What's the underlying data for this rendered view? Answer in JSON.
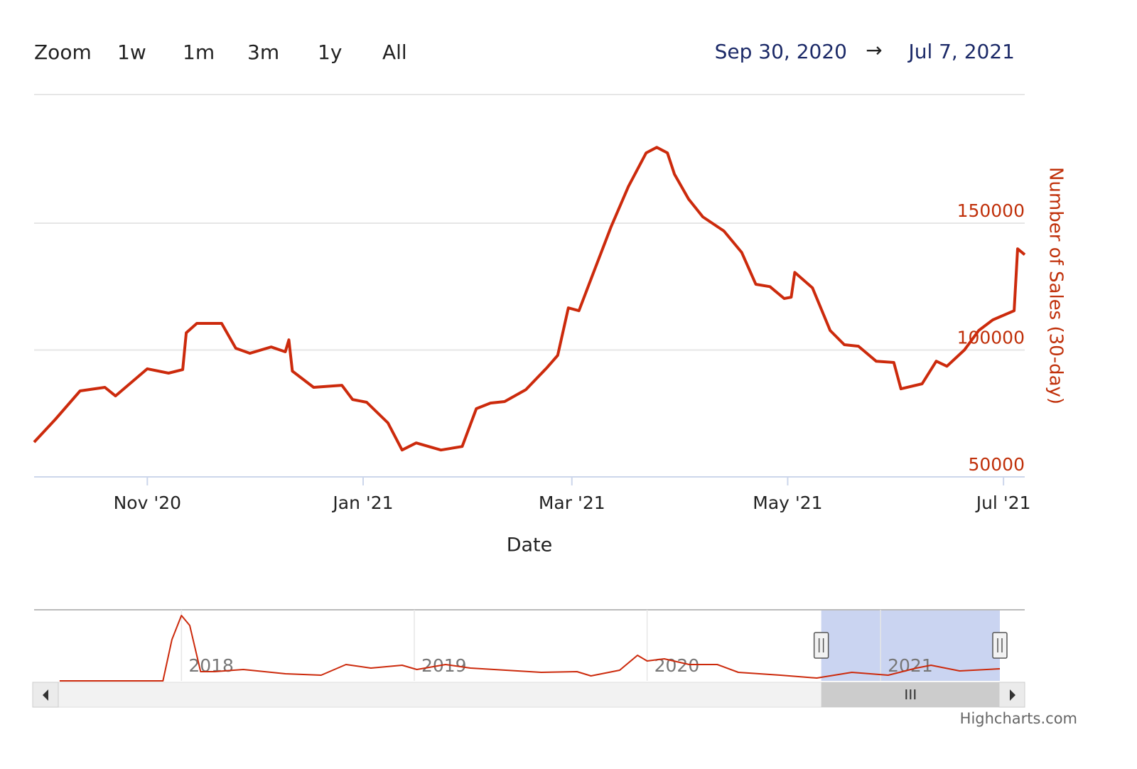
{
  "range_selector": {
    "label": "Zoom",
    "buttons": [
      "1w",
      "1m",
      "3m",
      "1y",
      "All"
    ],
    "from": "Sep 30, 2020",
    "separator": "→",
    "to": "Jul 7, 2021"
  },
  "credits": "Highcharts.com",
  "chart_data": [
    {
      "type": "line",
      "x_label": "Date",
      "y_label": "Number of Sales (30-day)",
      "color": "#cc2a0c",
      "x": [
        "2020-09-30",
        "2020-10-06",
        "2020-10-13",
        "2020-10-20",
        "2020-10-23",
        "2020-11-01",
        "2020-11-07",
        "2020-11-11",
        "2020-11-12",
        "2020-11-15",
        "2020-11-22",
        "2020-11-26",
        "2020-11-30",
        "2020-12-06",
        "2020-12-10",
        "2020-12-11",
        "2020-12-12",
        "2020-12-18",
        "2020-12-26",
        "2020-12-29",
        "2021-01-02",
        "2021-01-08",
        "2021-01-12",
        "2021-01-16",
        "2021-01-23",
        "2021-01-29",
        "2021-02-02",
        "2021-02-06",
        "2021-02-10",
        "2021-02-16",
        "2021-02-22",
        "2021-02-25",
        "2021-02-28",
        "2021-03-03",
        "2021-03-07",
        "2021-03-12",
        "2021-03-17",
        "2021-03-22",
        "2021-03-25",
        "2021-03-28",
        "2021-03-30",
        "2021-04-03",
        "2021-04-07",
        "2021-04-13",
        "2021-04-18",
        "2021-04-22",
        "2021-04-26",
        "2021-04-30",
        "2021-05-02",
        "2021-05-03",
        "2021-05-08",
        "2021-05-13",
        "2021-05-17",
        "2021-05-21",
        "2021-05-26",
        "2021-05-31",
        "2021-06-02",
        "2021-06-08",
        "2021-06-12",
        "2021-06-15",
        "2021-06-20",
        "2021-06-24",
        "2021-06-28",
        "2021-07-04",
        "2021-07-05",
        "2021-07-07"
      ],
      "values": [
        63700,
        72700,
        83900,
        85300,
        81900,
        92600,
        90900,
        92300,
        106800,
        110500,
        110500,
        100700,
        98700,
        101200,
        99300,
        104000,
        91700,
        85300,
        86100,
        80500,
        79400,
        71300,
        60600,
        63400,
        60600,
        62000,
        76900,
        79100,
        79700,
        84400,
        93100,
        97900,
        116600,
        115500,
        130100,
        148300,
        164500,
        177700,
        179900,
        177700,
        169300,
        159500,
        152500,
        146900,
        138500,
        125900,
        125000,
        120300,
        120800,
        130600,
        124500,
        107700,
        102100,
        101500,
        95600,
        95100,
        84700,
        86700,
        95600,
        93600,
        100100,
        107700,
        111900,
        115500,
        139900,
        137600
      ],
      "xlim": [
        "2020-09-30",
        "2021-07-07"
      ],
      "xticks": [
        {
          "value": "2020-11-01",
          "label": "Nov '20"
        },
        {
          "value": "2021-01-01",
          "label": "Jan '21"
        },
        {
          "value": "2021-03-01",
          "label": "Mar '21"
        },
        {
          "value": "2021-05-01",
          "label": "May '21"
        },
        {
          "value": "2021-07-01",
          "label": "Jul '21"
        }
      ],
      "ylim": [
        50000,
        200000
      ],
      "yticks": [
        50000,
        100000,
        150000
      ],
      "grid": true,
      "y_axis_side": "right"
    },
    {
      "type": "line",
      "color": "#cc2a0c",
      "x": [
        "2017-06-24",
        "2017-12-03",
        "2017-12-17",
        "2018-01-01",
        "2018-01-14",
        "2018-01-31",
        "2018-02-22",
        "2018-04-08",
        "2018-06-13",
        "2018-08-08",
        "2018-09-16",
        "2018-10-25",
        "2018-12-13",
        "2019-01-05",
        "2019-02-19",
        "2019-03-30",
        "2019-07-19",
        "2019-09-13",
        "2019-10-05",
        "2019-11-19",
        "2019-12-17",
        "2020-01-01",
        "2020-01-28",
        "2020-03-07",
        "2020-04-20",
        "2020-05-23",
        "2020-07-28",
        "2020-09-23",
        "2020-11-17",
        "2021-01-13",
        "2021-02-26",
        "2021-03-21",
        "2021-05-05",
        "2021-07-07"
      ],
      "values": [
        0,
        0,
        580000,
        920000,
        780000,
        130000,
        130000,
        160000,
        100000,
        80000,
        230000,
        180000,
        220000,
        160000,
        230000,
        180000,
        120000,
        130000,
        70000,
        150000,
        360000,
        280000,
        310000,
        230000,
        230000,
        120000,
        80000,
        40000,
        120000,
        80000,
        180000,
        220000,
        140000,
        170000
      ],
      "xlim": [
        "2017-05-15",
        "2021-08-15"
      ],
      "xticks": [
        {
          "value": "2018-01-01",
          "label": "2018"
        },
        {
          "value": "2019-01-01",
          "label": "2019"
        },
        {
          "value": "2020-01-01",
          "label": "2020"
        },
        {
          "value": "2021-01-01",
          "label": "2021"
        }
      ],
      "ylim": [
        0,
        1000000
      ],
      "grid": true
    }
  ]
}
